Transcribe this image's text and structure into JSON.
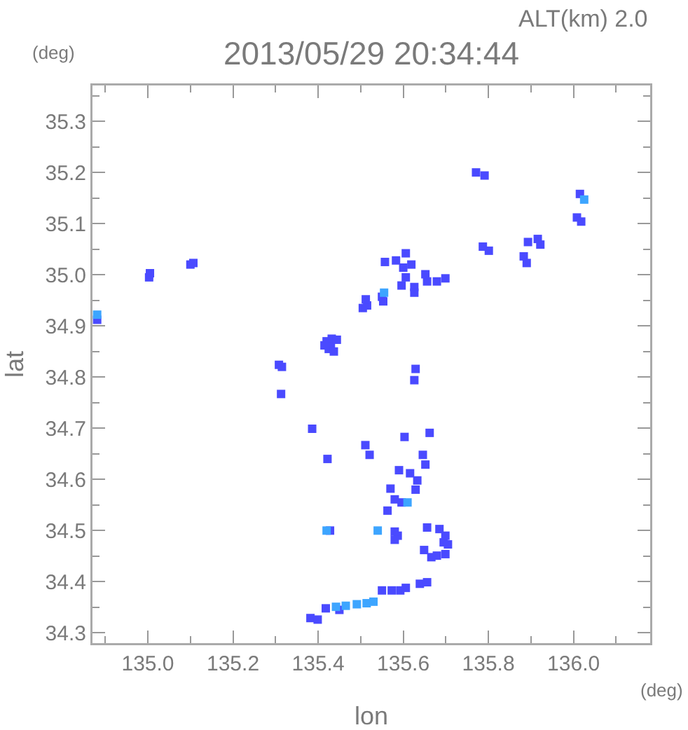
{
  "chart_data": {
    "type": "scatter",
    "title": "2013/05/29 20:34:44",
    "xlabel": "lon",
    "ylabel": "lat",
    "annotations": [
      "ALT(km) 2.0",
      "(deg)",
      "(deg)"
    ],
    "xlim": [
      134.87,
      136.18
    ],
    "ylim": [
      34.28,
      35.37
    ],
    "marker": "square",
    "xticks": [
      {
        "value": 134.9,
        "label": null
      },
      {
        "value": 135,
        "label": "135.0"
      },
      {
        "value": 135.1,
        "label": null
      },
      135.2,
      {
        "value": 135.3,
        "label": null
      },
      135.4,
      {
        "value": 135.5,
        "label": null
      },
      135.6,
      {
        "value": 135.7,
        "label": null
      },
      135.8,
      {
        "value": 135.9,
        "label": null
      },
      {
        "value": 136,
        "label": "136.0"
      },
      {
        "value": 136.1,
        "label": null
      }
    ],
    "yticks": [
      34.3,
      {
        "value": 34.35,
        "label": null
      },
      34.4,
      {
        "value": 34.45,
        "label": null
      },
      34.5,
      {
        "value": 34.55,
        "label": null
      },
      34.6,
      {
        "value": 34.65,
        "label": null
      },
      34.7,
      {
        "value": 34.75,
        "label": null
      },
      34.8,
      {
        "value": 34.85,
        "label": null
      },
      34.9,
      {
        "value": 34.95,
        "label": null
      },
      {
        "value": 35,
        "label": "35.0"
      },
      {
        "value": 35.05,
        "label": null
      },
      35.1,
      {
        "value": 35.15,
        "label": null
      },
      35.2,
      {
        "value": 35.25,
        "label": null
      },
      35.3,
      {
        "value": 35.35,
        "label": null
      }
    ],
    "series": [
      {
        "color": "#4a4aff",
        "x": [
          134.881,
          135.003,
          135.005,
          135.1,
          135.107,
          135.308,
          135.315,
          135.313,
          135.42,
          135.43,
          135.425,
          135.437,
          135.432,
          135.415,
          135.444,
          135.505,
          135.515,
          135.512,
          135.55,
          135.553,
          135.557,
          135.583,
          135.606,
          135.6,
          135.619,
          135.606,
          135.596,
          135.626,
          135.626,
          135.656,
          135.679,
          135.652,
          135.699,
          135.771,
          135.791,
          135.787,
          135.801,
          135.893,
          135.916,
          135.922,
          135.883,
          135.89,
          136.015,
          136.008,
          136.018,
          135.629,
          135.626,
          135.386,
          135.422,
          135.662,
          135.511,
          135.521,
          135.603,
          135.646,
          135.652,
          135.59,
          135.616,
          135.633,
          135.57,
          135.629,
          135.58,
          135.596,
          135.563,
          135.58,
          135.587,
          135.58,
          135.656,
          135.685,
          135.649,
          135.695,
          135.699,
          135.705,
          135.666,
          135.679,
          135.699,
          135.55,
          135.573,
          135.593,
          135.606,
          135.639,
          135.656,
          135.382,
          135.399,
          135.428,
          135.418,
          135.45
        ],
        "values": [
          34.912,
          34.995,
          35.003,
          35.02,
          35.023,
          34.824,
          34.82,
          34.767,
          34.87,
          34.865,
          34.855,
          34.85,
          34.875,
          34.862,
          34.873,
          34.935,
          34.94,
          34.952,
          34.957,
          34.948,
          35.025,
          35.028,
          35.042,
          35.014,
          35.02,
          34.995,
          34.979,
          34.976,
          34.965,
          34.987,
          34.987,
          35.001,
          34.993,
          35.2,
          35.194,
          35.055,
          35.047,
          35.064,
          35.07,
          35.059,
          35.036,
          35.023,
          35.158,
          35.112,
          35.104,
          34.816,
          34.794,
          34.699,
          34.64,
          34.691,
          34.667,
          34.648,
          34.683,
          34.648,
          34.629,
          34.618,
          34.612,
          34.598,
          34.582,
          34.58,
          34.561,
          34.555,
          34.539,
          34.498,
          34.49,
          34.482,
          34.506,
          34.503,
          34.462,
          34.477,
          34.49,
          34.473,
          34.448,
          34.451,
          34.454,
          34.383,
          34.383,
          34.383,
          34.388,
          34.396,
          34.399,
          34.329,
          34.326,
          34.5,
          34.348,
          34.345
        ]
      },
      {
        "color": "#3da5ff",
        "x": [
          134.881,
          135.555,
          136.025,
          135.61,
          135.54,
          135.42,
          135.442,
          135.465,
          135.491,
          135.514,
          135.53
        ],
        "values": [
          34.922,
          34.965,
          35.147,
          34.555,
          34.5,
          34.5,
          34.351,
          34.353,
          34.356,
          34.358,
          34.361
        ]
      }
    ]
  }
}
